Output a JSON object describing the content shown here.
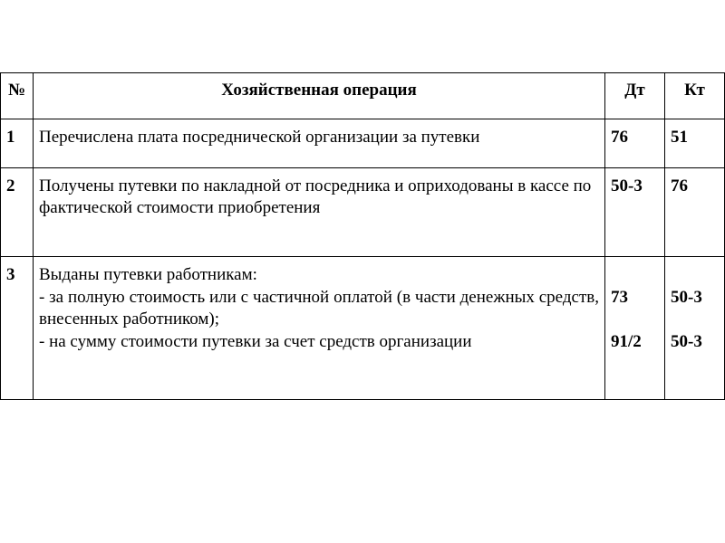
{
  "table": {
    "columns": [
      "№",
      "Хозяйственная операция",
      "Дт",
      "Кт"
    ],
    "rows": [
      {
        "num": "1",
        "operation": "Перечислена плата посреднической организации за путевки",
        "dt": "76",
        "kt": "51"
      },
      {
        "num": "2",
        "operation": "Получены путевки по накладной от посредника и оприходованы в кассе по фактической стоимости приобретения",
        "dt": "50-3",
        "kt": "76"
      },
      {
        "num": "3",
        "operation_main": "Выданы путевки работникам:",
        "operation_sub1": "-  за полную стоимость или с частичной оплатой (в части денежных средств, внесенных работником);",
        "operation_sub2": "-  на сумму стоимости путевки за счет средств организации",
        "dt": "\n73\n\n91/2",
        "kt": "\n50-3\n\n50-3"
      }
    ],
    "style": {
      "border_color": "#000000",
      "background_color": "#ffffff",
      "text_color": "#000000",
      "font_size_pt": 14,
      "font_family": "Times New Roman"
    }
  }
}
